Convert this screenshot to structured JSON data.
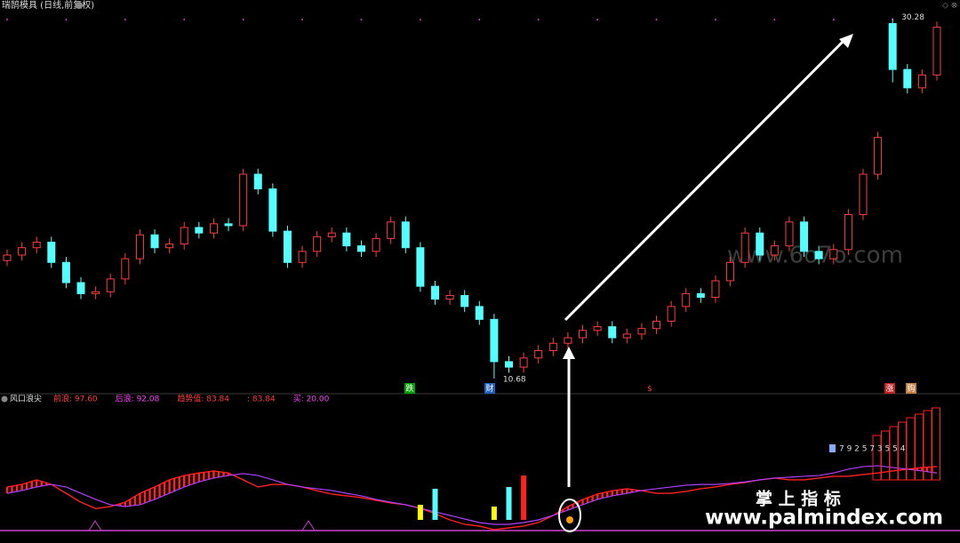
{
  "chart_data": [
    {
      "type": "candlestick",
      "title": "瑞鹄模具 (日线,前复权)",
      "open": [
        17.1,
        17.4,
        17.8,
        18.1,
        17.0,
        15.9,
        15.3,
        15.4,
        16.1,
        17.2,
        18.5,
        17.8,
        18.0,
        18.9,
        18.6,
        19.1,
        19.0,
        21.8,
        21.0,
        18.7,
        17.0,
        17.6,
        18.4,
        18.6,
        17.9,
        17.6,
        18.3,
        19.2,
        17.8,
        15.7,
        15.0,
        15.2,
        14.6,
        13.9,
        11.6,
        11.3,
        11.8,
        12.2,
        12.6,
        12.9,
        13.3,
        13.5,
        12.9,
        13.1,
        13.4,
        13.8,
        14.6,
        15.3,
        15.1,
        16.0,
        17.0,
        18.6,
        17.4,
        17.9,
        19.2,
        17.6,
        17.2,
        17.7,
        19.6,
        21.8,
        30.0,
        27.5,
        26.5,
        27.2
      ],
      "high": [
        17.7,
        18.1,
        18.4,
        18.4,
        17.3,
        16.2,
        15.7,
        16.4,
        17.5,
        18.8,
        18.8,
        18.3,
        19.2,
        19.2,
        19.4,
        19.4,
        22.1,
        22.1,
        21.3,
        19.0,
        17.9,
        18.7,
        18.9,
        18.9,
        18.2,
        18.6,
        19.5,
        19.5,
        18.1,
        16.0,
        15.5,
        15.5,
        14.9,
        14.2,
        11.9,
        12.1,
        12.5,
        12.9,
        13.2,
        13.6,
        13.8,
        13.8,
        13.4,
        13.7,
        14.1,
        14.9,
        15.6,
        15.6,
        16.3,
        17.3,
        18.9,
        18.9,
        18.2,
        19.5,
        19.5,
        17.9,
        18.0,
        19.9,
        22.1,
        24.1,
        30.28,
        27.8,
        27.5,
        30.1
      ],
      "low": [
        16.8,
        17.1,
        17.5,
        16.7,
        15.6,
        15.0,
        15.0,
        15.1,
        15.8,
        16.9,
        17.5,
        17.5,
        17.7,
        18.3,
        18.3,
        18.7,
        18.7,
        20.7,
        18.4,
        16.7,
        16.7,
        17.3,
        18.1,
        17.6,
        17.3,
        17.3,
        18.0,
        17.5,
        15.4,
        14.7,
        14.7,
        14.3,
        13.6,
        10.68,
        11.0,
        11.0,
        11.5,
        11.9,
        12.3,
        12.6,
        13.0,
        12.6,
        12.6,
        12.8,
        13.1,
        13.5,
        14.3,
        14.8,
        14.8,
        15.7,
        16.7,
        17.1,
        17.1,
        17.6,
        17.3,
        16.9,
        16.9,
        17.4,
        19.3,
        21.5,
        26.8,
        26.2,
        26.2,
        26.9
      ],
      "close": [
        17.4,
        17.8,
        18.1,
        17.0,
        15.9,
        15.3,
        15.4,
        16.1,
        17.2,
        18.5,
        17.8,
        18.0,
        18.9,
        18.6,
        19.1,
        19.0,
        21.8,
        21.0,
        18.7,
        17.0,
        17.6,
        18.4,
        18.6,
        17.9,
        17.6,
        18.3,
        19.2,
        17.8,
        15.7,
        15.0,
        15.2,
        14.6,
        13.9,
        11.6,
        11.3,
        11.8,
        12.2,
        12.6,
        12.9,
        13.3,
        13.5,
        12.9,
        13.1,
        13.4,
        13.8,
        14.6,
        15.3,
        15.1,
        16.0,
        17.0,
        18.6,
        17.4,
        17.9,
        19.2,
        17.6,
        17.2,
        17.7,
        19.6,
        21.8,
        23.8,
        27.5,
        26.5,
        27.2,
        29.8
      ],
      "ylim": [
        10.0,
        30.7
      ],
      "up_color": "#ff3c3c",
      "down_color": "#54ffff",
      "markers": [
        "跌",
        "财",
        "$",
        "涨",
        "购"
      ],
      "watermark": "www.6o7o.com"
    },
    {
      "type": "line",
      "title": "风口浪尖",
      "header_labels": [
        "前浪: 97.60",
        "后浪: 92.08",
        "趋势值: 83.84",
        ": 83.84",
        "买: 20.00"
      ],
      "header_colors": [
        "#ff3c3c",
        "#ff40ff",
        "#ff3c3c",
        "#ff3c3c",
        "#ff40ff"
      ],
      "ylim": [
        0,
        100
      ],
      "series": [
        {
          "color": "#ff2020",
          "values": [
            35,
            37,
            40.6,
            37,
            30,
            23,
            18,
            19.6,
            23,
            30,
            35,
            40.6,
            44,
            46,
            47.6,
            46,
            40.6,
            35,
            37,
            37,
            35,
            32,
            29.4,
            28,
            26.6,
            24.5,
            22.4,
            21,
            18.2,
            14,
            9.1,
            5.6,
            4.2,
            1.4,
            2.8,
            4.2,
            7,
            12.6,
            19.6,
            25.2,
            29.4,
            32,
            33.6,
            32,
            30,
            30,
            31.5,
            33.6,
            35,
            37,
            38.5,
            40.6,
            42,
            40.6,
            40.6,
            42,
            43.4,
            43.4,
            44.8,
            46,
            47.6,
            49,
            50.3,
            51
          ]
        },
        {
          "color": "#b040ff",
          "values": [
            30,
            32.2,
            35,
            37,
            35,
            30,
            25.2,
            21,
            19.6,
            21,
            25.2,
            30,
            35,
            39,
            42,
            44,
            45.5,
            44,
            40.6,
            37,
            35,
            33.6,
            32.2,
            30,
            28,
            25.2,
            23,
            21,
            18.2,
            15.4,
            12.6,
            9.8,
            7,
            5.6,
            5.6,
            7,
            9.1,
            12.6,
            16.8,
            21,
            25.2,
            28,
            30,
            32.2,
            33.6,
            35,
            36.4,
            37,
            37,
            37.8,
            39,
            40.6,
            42,
            42.7,
            43.4,
            44,
            46,
            49,
            51,
            51.7,
            50.3,
            49,
            47.6,
            46
          ]
        }
      ],
      "signals": [
        null,
        null,
        null,
        null,
        null,
        null,
        null,
        null,
        null,
        null,
        null,
        null,
        null,
        null,
        null,
        null,
        null,
        null,
        null,
        null,
        null,
        null,
        null,
        null,
        null,
        null,
        null,
        null,
        21,
        33.6,
        null,
        null,
        null,
        19.6,
        35,
        44,
        null,
        null,
        null,
        null,
        null,
        null,
        null,
        null,
        null,
        null,
        null,
        null,
        null,
        null,
        null,
        null,
        null,
        null,
        null,
        null,
        null,
        null,
        null,
        null,
        null,
        null,
        null,
        null
      ],
      "signal_colors": [
        null,
        null,
        null,
        null,
        null,
        null,
        null,
        null,
        null,
        null,
        null,
        null,
        null,
        null,
        null,
        null,
        null,
        null,
        null,
        null,
        null,
        null,
        null,
        null,
        null,
        null,
        null,
        null,
        "#ffff00",
        "#54ffff",
        null,
        null,
        null,
        "#ffff00",
        "#54ffff",
        "#ff2020",
        null,
        null,
        null,
        null,
        null,
        null,
        null,
        null,
        null,
        null,
        null,
        null,
        null,
        null,
        null,
        null,
        null,
        null,
        null,
        null,
        null,
        null,
        null,
        null,
        null,
        null,
        null,
        null
      ],
      "steps": [
        75.5,
        79,
        82.5,
        86,
        89.5,
        92.3,
        95.1,
        97.2
      ],
      "step_digits": "7 9 2 5 7 3 5 5 4",
      "footer_title": "掌 上 指 标",
      "footer_url": "www.palmindex.com"
    }
  ]
}
